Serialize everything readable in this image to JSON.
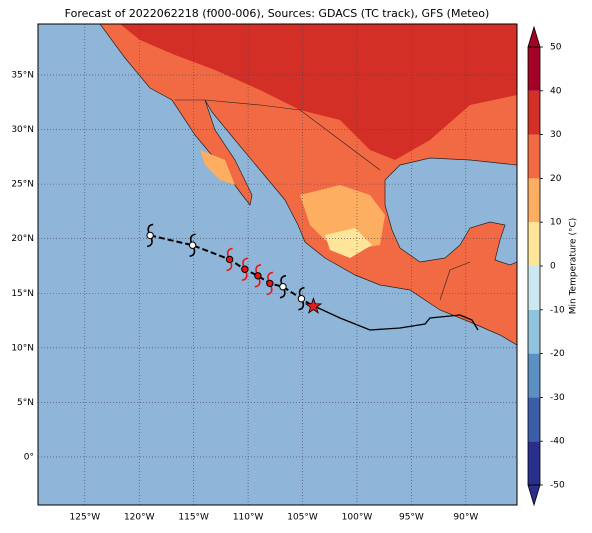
{
  "chart_data": {
    "type": "map",
    "title": "Forecast of 2022062218 (f000-006), Sources: GDACS (TC track), GFS (Meteo)",
    "xlim": [
      -129.3,
      -85.3
    ],
    "ylim": [
      -4.4,
      39.67
    ],
    "xticks": [
      {
        "value": -125,
        "label": "125°W"
      },
      {
        "value": -120,
        "label": "120°W"
      },
      {
        "value": -115,
        "label": "115°W"
      },
      {
        "value": -110,
        "label": "110°W"
      },
      {
        "value": -105,
        "label": "105°W"
      },
      {
        "value": -100,
        "label": "100°W"
      },
      {
        "value": -95,
        "label": "95°W"
      },
      {
        "value": -90,
        "label": "90°W"
      }
    ],
    "yticks": [
      {
        "value": 0,
        "label": "0°"
      },
      {
        "value": 5,
        "label": "5°N"
      },
      {
        "value": 10,
        "label": "10°N"
      },
      {
        "value": 15,
        "label": "15°N"
      },
      {
        "value": 20,
        "label": "20°N"
      },
      {
        "value": 25,
        "label": "25°N"
      },
      {
        "value": 30,
        "label": "30°N"
      },
      {
        "value": 35,
        "label": "35°N"
      }
    ],
    "grid": true,
    "track": {
      "lon": [
        -119.0,
        -115.1,
        -111.7,
        -110.3,
        -109.1,
        -108.0,
        -106.8,
        -105.1
      ],
      "lat": [
        20.3,
        19.4,
        18.1,
        17.2,
        16.6,
        15.9,
        15.6,
        14.5
      ],
      "colors": [
        "#ffffff",
        "#ffffff",
        "#ee1111",
        "#ee1111",
        "#ee1111",
        "#ee1111",
        "#ffffff",
        "#ffffff"
      ]
    },
    "star": {
      "lon": -104.0,
      "lat": 13.8,
      "color": "#e0201a"
    },
    "colorbar": {
      "label": "Min Temperature (°C)",
      "lim": [
        -50,
        50
      ],
      "ticks": [
        -50,
        -40,
        -30,
        -20,
        -10,
        0,
        10,
        20,
        30,
        40,
        50
      ],
      "colors": [
        "#2a2f8e",
        "#3b5ea8",
        "#5c8fc2",
        "#92c3dd",
        "#cbe8f1",
        "#f3f9ea",
        "#fee59a",
        "#fdae61",
        "#f26a43",
        "#d32f27",
        "#a50026"
      ]
    }
  }
}
